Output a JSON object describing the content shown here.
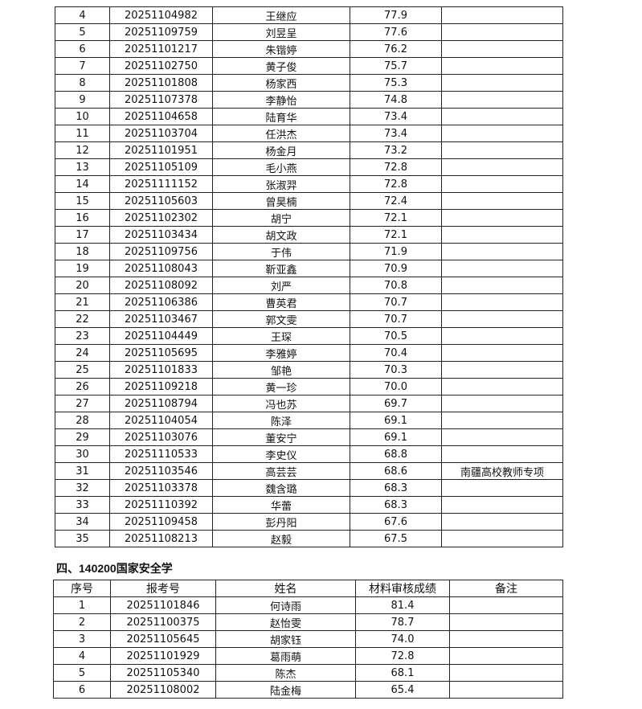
{
  "table1": {
    "rows": [
      [
        "4",
        "20251104982",
        "王继应",
        "77.9",
        ""
      ],
      [
        "5",
        "20251109759",
        "刘昱呈",
        "77.6",
        ""
      ],
      [
        "6",
        "20251101217",
        "朱锴婷",
        "76.2",
        ""
      ],
      [
        "7",
        "20251102750",
        "黄子俊",
        "75.7",
        ""
      ],
      [
        "8",
        "20251101808",
        "杨家西",
        "75.3",
        ""
      ],
      [
        "9",
        "20251107378",
        "李静怡",
        "74.8",
        ""
      ],
      [
        "10",
        "20251104658",
        "陆育华",
        "73.4",
        ""
      ],
      [
        "11",
        "20251103704",
        "任洪杰",
        "73.4",
        ""
      ],
      [
        "12",
        "20251101951",
        "杨金月",
        "73.2",
        ""
      ],
      [
        "13",
        "20251105109",
        "毛小燕",
        "72.8",
        ""
      ],
      [
        "14",
        "20251111152",
        "张淑羿",
        "72.8",
        ""
      ],
      [
        "15",
        "20251105603",
        "曾昊楠",
        "72.4",
        ""
      ],
      [
        "16",
        "20251102302",
        "胡宁",
        "72.1",
        ""
      ],
      [
        "17",
        "20251103434",
        "胡文政",
        "72.1",
        ""
      ],
      [
        "18",
        "20251109756",
        "于伟",
        "71.9",
        ""
      ],
      [
        "19",
        "20251108043",
        "靳亚鑫",
        "70.9",
        ""
      ],
      [
        "20",
        "20251108092",
        "刘严",
        "70.8",
        ""
      ],
      [
        "21",
        "20251106386",
        "曹英君",
        "70.7",
        ""
      ],
      [
        "22",
        "20251103467",
        "郭文雯",
        "70.7",
        ""
      ],
      [
        "23",
        "20251104449",
        "王琛",
        "70.5",
        ""
      ],
      [
        "24",
        "20251105695",
        "李雅婷",
        "70.4",
        ""
      ],
      [
        "25",
        "20251101833",
        "邹艳",
        "70.3",
        ""
      ],
      [
        "26",
        "20251109218",
        "黄一珍",
        "70.0",
        ""
      ],
      [
        "27",
        "20251108794",
        "冯也苏",
        "69.7",
        ""
      ],
      [
        "28",
        "20251104054",
        "陈泽",
        "69.1",
        ""
      ],
      [
        "29",
        "20251103076",
        "董安宁",
        "69.1",
        ""
      ],
      [
        "30",
        "20251110533",
        "李史仪",
        "68.8",
        ""
      ],
      [
        "31",
        "20251103546",
        "高芸芸",
        "68.6",
        "南疆高校教师专项"
      ],
      [
        "32",
        "20251103378",
        "魏含璐",
        "68.3",
        ""
      ],
      [
        "33",
        "20251110392",
        "华蕾",
        "68.3",
        ""
      ],
      [
        "34",
        "20251109458",
        "彭丹阳",
        "67.6",
        ""
      ],
      [
        "35",
        "20251108213",
        "赵毅",
        "67.5",
        ""
      ]
    ]
  },
  "section4": {
    "title": "四、140200国家安全学",
    "headers": [
      "序号",
      "报考号",
      "姓名",
      "材料审核成绩",
      "备注"
    ],
    "rows": [
      [
        "1",
        "20251101846",
        "何诗雨",
        "81.4",
        ""
      ],
      [
        "2",
        "20251100375",
        "赵怡雯",
        "78.7",
        ""
      ],
      [
        "3",
        "20251105645",
        "胡家钰",
        "74.0",
        ""
      ],
      [
        "4",
        "20251101929",
        "葛雨萌",
        "72.8",
        ""
      ],
      [
        "5",
        "20251105340",
        "陈杰",
        "68.1",
        ""
      ],
      [
        "6",
        "20251108002",
        "陆金梅",
        "65.4",
        ""
      ]
    ]
  }
}
